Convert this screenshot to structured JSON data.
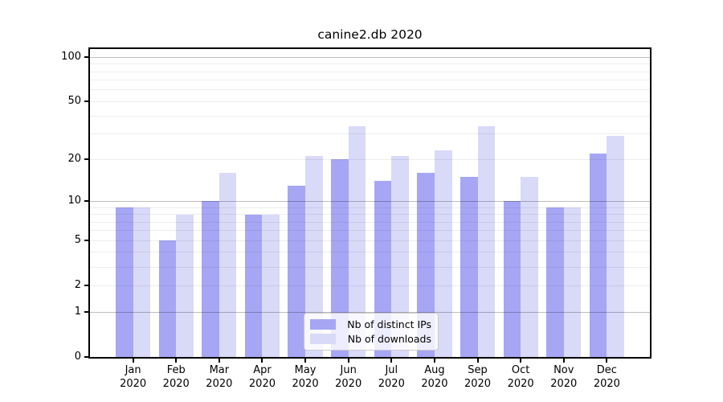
{
  "chart_data": {
    "type": "bar",
    "title": "canine2.db 2020",
    "categories": [
      "Jan 2020",
      "Feb 2020",
      "Mar 2020",
      "Apr 2020",
      "May 2020",
      "Jun 2020",
      "Jul 2020",
      "Aug 2020",
      "Sep 2020",
      "Oct 2020",
      "Nov 2020",
      "Dec 2020"
    ],
    "series": [
      {
        "name": "Nb of distinct IPs",
        "color": "#a6a6f5",
        "values": [
          9,
          5,
          10,
          8,
          13,
          20,
          14,
          16,
          15,
          10,
          9,
          22
        ]
      },
      {
        "name": "Nb of downloads",
        "color": "#d9d9f8",
        "values": [
          9,
          8,
          16,
          8,
          21,
          34,
          21,
          23,
          34,
          15,
          9,
          29
        ]
      }
    ],
    "xlabel": "",
    "ylabel": "",
    "y_scale": "log1p",
    "ylim": [
      0,
      115
    ],
    "y_ticks": [
      100,
      50,
      20,
      10,
      5,
      2,
      1,
      0
    ],
    "y_grid_major": [
      1,
      10,
      100
    ],
    "y_grid_minor": [
      2,
      3,
      4,
      5,
      6,
      7,
      8,
      9,
      20,
      30,
      40,
      60,
      70,
      80,
      90
    ],
    "y_grid_minor_labeled": [
      2,
      5,
      20,
      50
    ],
    "grid": true,
    "legend_position": "lower center"
  }
}
